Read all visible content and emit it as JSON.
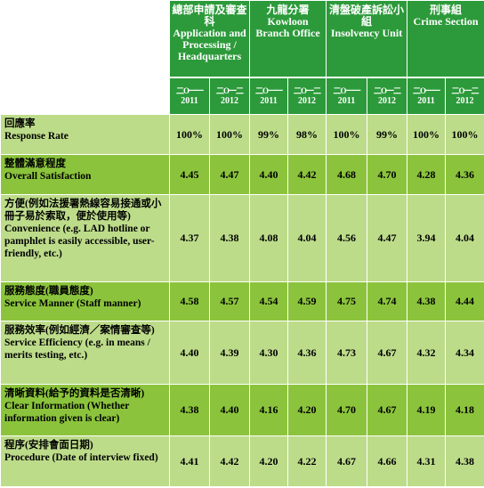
{
  "units": [
    {
      "zh": "總部申請及審查科",
      "en": "Application and Processing / Headquarters"
    },
    {
      "zh": "九龍分署",
      "en": "Kowloon Branch Office"
    },
    {
      "zh": "清盤破產訴訟小組",
      "en": "Insolvency Unit"
    },
    {
      "zh": "刑事組",
      "en": "Crime Section"
    }
  ],
  "years": [
    {
      "zh": "二O一一",
      "en": "2011"
    },
    {
      "zh": "二O一二",
      "en": "2012"
    },
    {
      "zh": "二O一一",
      "en": "2011"
    },
    {
      "zh": "二O一二",
      "en": "2012"
    },
    {
      "zh": "二O一一",
      "en": "2011"
    },
    {
      "zh": "二O一二",
      "en": "2012"
    },
    {
      "zh": "二O一一",
      "en": "2011"
    },
    {
      "zh": "二O一二",
      "en": "2012"
    }
  ],
  "rows": [
    {
      "zh": "回應率",
      "en": "Response Rate",
      "values": [
        "100%",
        "100%",
        "99%",
        "98%",
        "100%",
        "99%",
        "100%",
        "100%"
      ]
    },
    {
      "zh": "整體滿意程度",
      "en": "Overall Satisfaction",
      "values": [
        "4.45",
        "4.47",
        "4.40",
        "4.42",
        "4.68",
        "4.70",
        "4.28",
        "4.36"
      ]
    },
    {
      "zh": "方便(例如法援署熱線容易接通或小冊子易於索取，便於使用等)",
      "en": "Convenience (e.g. LAD hotline or pamphlet is easily accessible, user-friendly, etc.)",
      "values": [
        "4.37",
        "4.38",
        "4.08",
        "4.04",
        "4.56",
        "4.47",
        "3.94",
        "4.04"
      ]
    },
    {
      "zh": "服務態度(職員態度)",
      "en": "Service Manner (Staff manner)",
      "values": [
        "4.58",
        "4.57",
        "4.54",
        "4.59",
        "4.75",
        "4.74",
        "4.38",
        "4.44"
      ]
    },
    {
      "zh": "服務效率(例如經濟／案情審查等)",
      "en": "Service Efficiency (e.g. in means / merits testing, etc.)",
      "values": [
        "4.40",
        "4.39",
        "4.30",
        "4.36",
        "4.73",
        "4.67",
        "4.32",
        "4.34"
      ]
    },
    {
      "zh": "清晰資料(給予的資料是否清晰)",
      "en": "Clear Information (Whether information given is clear)",
      "values": [
        "4.38",
        "4.40",
        "4.16",
        "4.20",
        "4.70",
        "4.67",
        "4.19",
        "4.18"
      ]
    },
    {
      "zh": "程序(安排會面日期)",
      "en": "Procedure (Date of interview fixed)",
      "values": [
        "4.41",
        "4.42",
        "4.20",
        "4.22",
        "4.67",
        "4.66",
        "4.31",
        "4.38"
      ]
    }
  ],
  "colors": {
    "header_green": "#2c9a3a",
    "row_light": "#bddc8a",
    "row_dark": "#8bc43c"
  }
}
